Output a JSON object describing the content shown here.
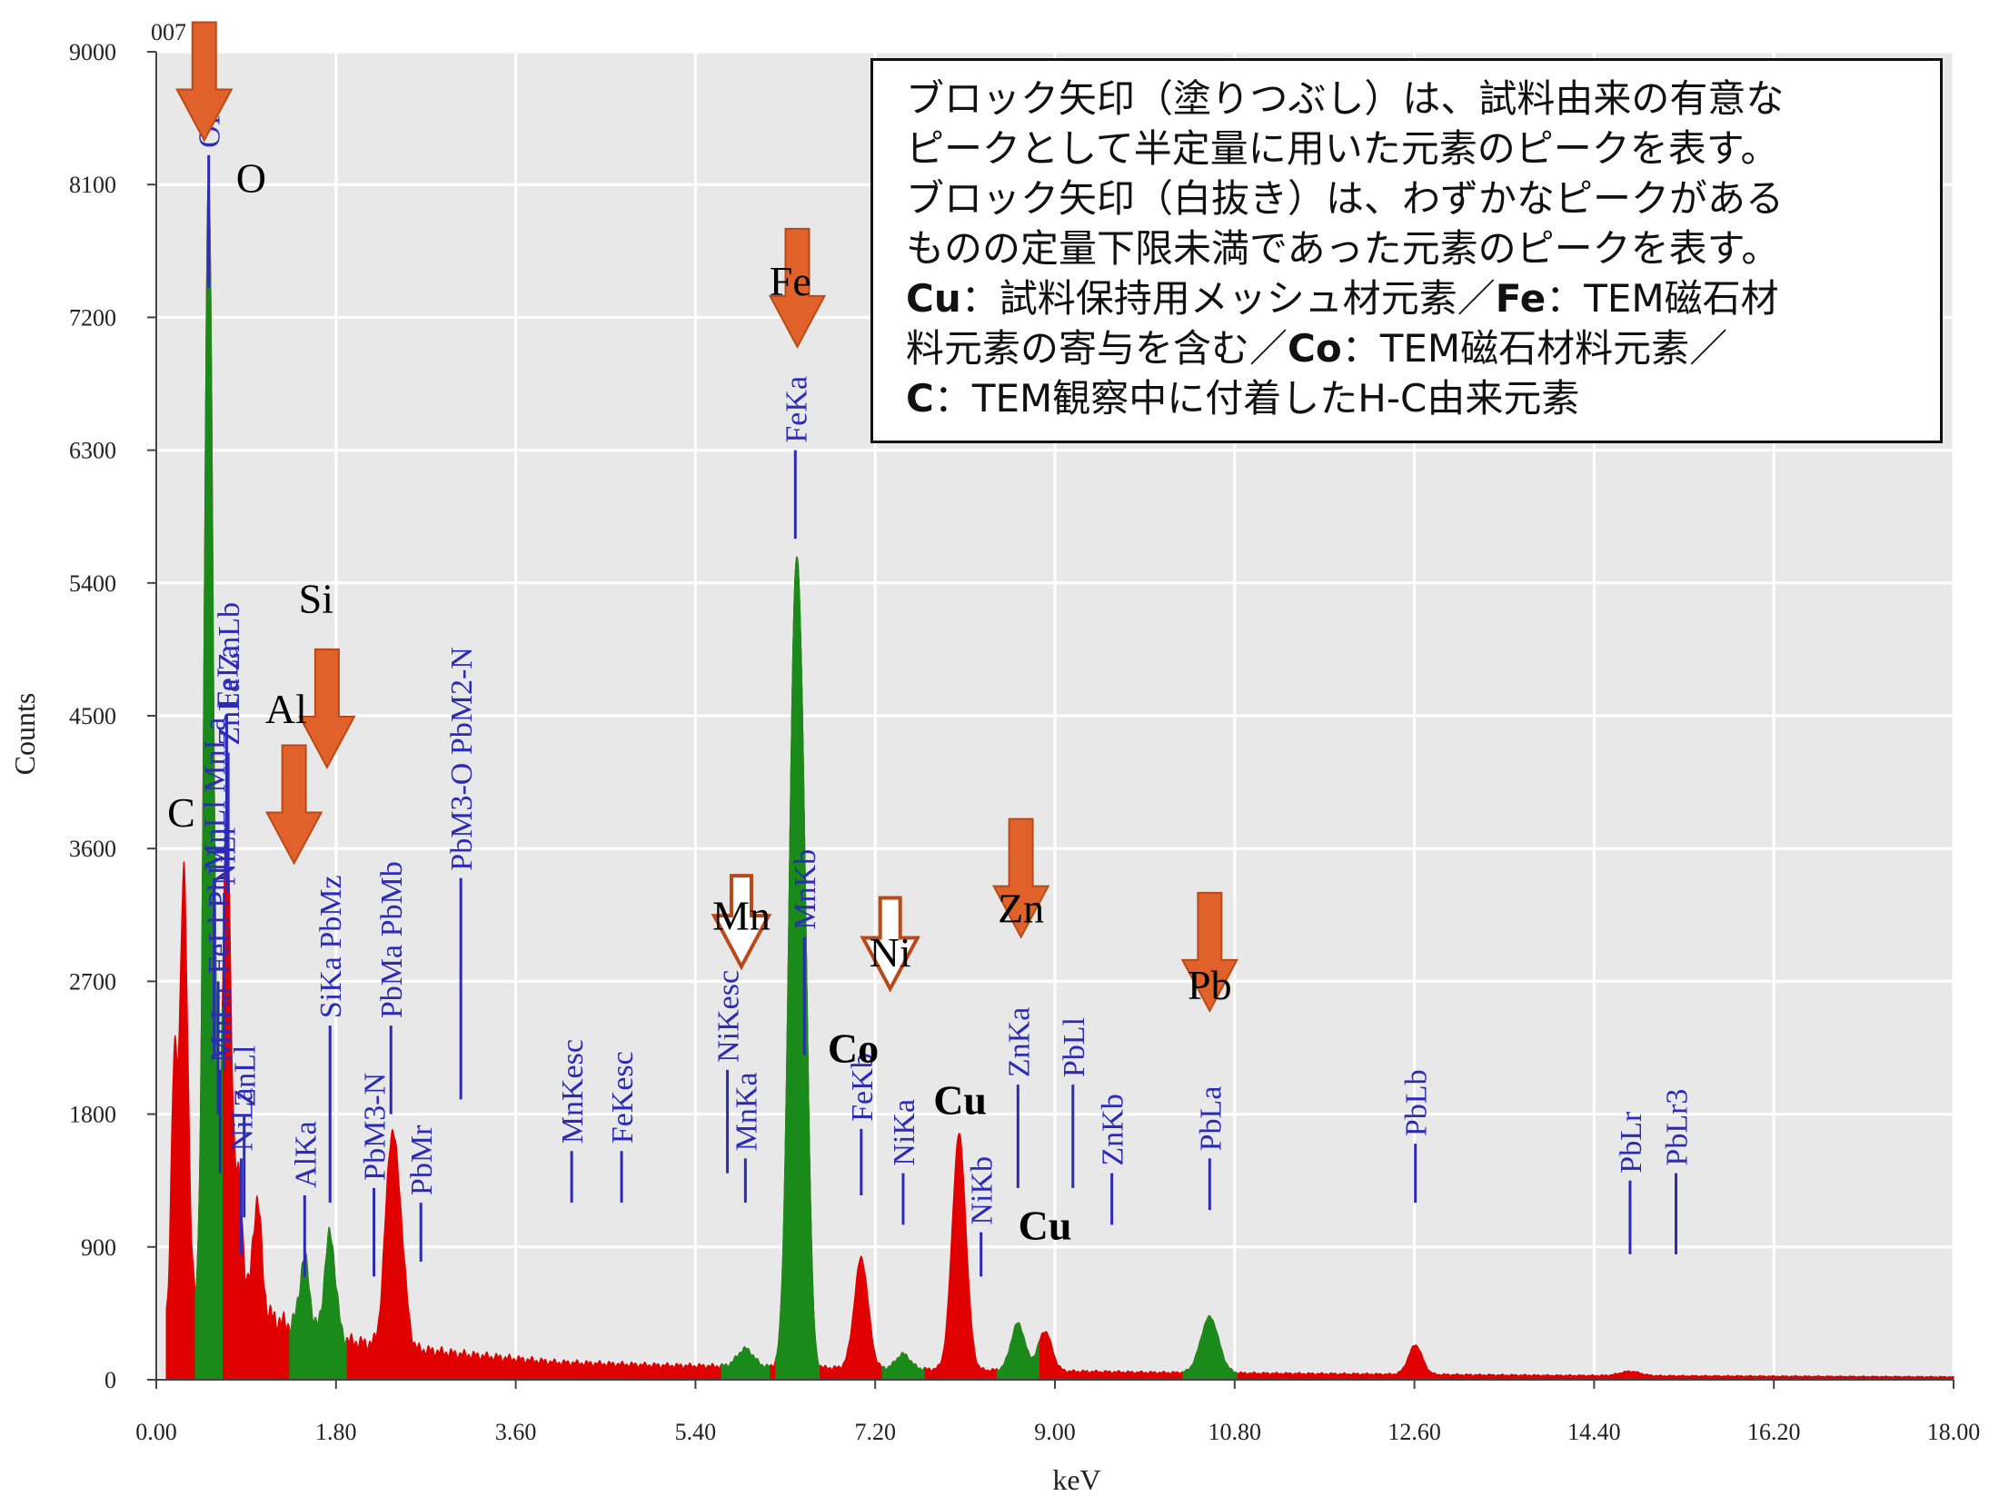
{
  "chart_data": {
    "type": "area",
    "corner_label": "007",
    "xlabel": "keV",
    "ylabel": "Counts",
    "xlim": [
      0,
      18
    ],
    "ylim": [
      0,
      9000
    ],
    "x_ticks": [
      "0.00",
      "1.80",
      "3.60",
      "5.40",
      "7.20",
      "9.00",
      "10.80",
      "12.60",
      "14.40",
      "16.20",
      "18.00"
    ],
    "y_ticks": [
      "0",
      "900",
      "1800",
      "2700",
      "3600",
      "4500",
      "5400",
      "6300",
      "7200",
      "8100",
      "9000"
    ],
    "grid": true,
    "colors": {
      "background": "#e8e8e8",
      "spectrum": "#e00000",
      "highlighted": "#1a8a1a",
      "arrow": "#e0622a",
      "marker": "#2b2bb8"
    },
    "background_baseline": [
      [
        0.1,
        420
      ],
      [
        0.5,
        520
      ],
      [
        1.0,
        480
      ],
      [
        1.5,
        320
      ],
      [
        2.0,
        260
      ],
      [
        2.5,
        220
      ],
      [
        3.0,
        180
      ],
      [
        4.0,
        120
      ],
      [
        5.0,
        100
      ],
      [
        6.0,
        90
      ],
      [
        7.0,
        80
      ],
      [
        8.0,
        70
      ],
      [
        9.0,
        60
      ],
      [
        10.0,
        50
      ],
      [
        12.0,
        40
      ],
      [
        14.0,
        30
      ],
      [
        16.0,
        25
      ],
      [
        18.0,
        20
      ]
    ],
    "peaks": [
      {
        "e": 0.18,
        "h": 1700,
        "w": 0.03,
        "c": "red"
      },
      {
        "e": 0.277,
        "h": 3000,
        "w": 0.04,
        "c": "red"
      },
      {
        "e": 0.525,
        "h": 7700,
        "w": 0.045,
        "c": "green"
      },
      {
        "e": 0.705,
        "h": 3300,
        "w": 0.045,
        "c": "red"
      },
      {
        "e": 0.83,
        "h": 800,
        "w": 0.04,
        "c": "red"
      },
      {
        "e": 1.01,
        "h": 750,
        "w": 0.045,
        "c": "red"
      },
      {
        "e": 1.486,
        "h": 500,
        "w": 0.05,
        "c": "green"
      },
      {
        "e": 1.74,
        "h": 700,
        "w": 0.055,
        "c": "green"
      },
      {
        "e": 2.345,
        "h": 1200,
        "w": 0.06,
        "c": "red"
      },
      {
        "e": 2.44,
        "h": 700,
        "w": 0.06,
        "c": "red"
      },
      {
        "e": 5.9,
        "h": 120,
        "w": 0.08,
        "c": "green"
      },
      {
        "e": 6.4,
        "h": 5050,
        "w": 0.065,
        "c": "green"
      },
      {
        "e": 6.49,
        "h": 1800,
        "w": 0.05,
        "c": "green"
      },
      {
        "e": 7.06,
        "h": 750,
        "w": 0.07,
        "c": "red"
      },
      {
        "e": 7.48,
        "h": 100,
        "w": 0.07,
        "c": "green"
      },
      {
        "e": 8.04,
        "h": 1600,
        "w": 0.07,
        "c": "red"
      },
      {
        "e": 8.63,
        "h": 320,
        "w": 0.07,
        "c": "green"
      },
      {
        "e": 8.9,
        "h": 270,
        "w": 0.07,
        "c": "red"
      },
      {
        "e": 10.55,
        "h": 380,
        "w": 0.09,
        "c": "green"
      },
      {
        "e": 12.61,
        "h": 200,
        "w": 0.07,
        "c": "red"
      },
      {
        "e": 14.76,
        "h": 30,
        "w": 0.1,
        "c": "red"
      }
    ],
    "line_markers": [
      {
        "label": "OKa",
        "e": 0.525,
        "top": 8300,
        "bottom": 7400
      },
      {
        "label": "FeLa",
        "e": 0.705,
        "top": 4500,
        "bottom": 3400
      },
      {
        "label": "ZnLa ZnLb",
        "e": 0.72,
        "top": 4250,
        "bottom": 3300
      },
      {
        "label": "MnLl MnLa",
        "e": 0.58,
        "top": 3400,
        "bottom": 2200
      },
      {
        "label": "NiLl",
        "e": 0.68,
        "top": 3300,
        "bottom": 2100
      },
      {
        "label": "FeLl PbLl",
        "e": 0.62,
        "top": 2700,
        "bottom": 1800
      },
      {
        "label": "MnLa",
        "e": 0.64,
        "top": 2100,
        "bottom": 1400
      },
      {
        "label": "ZnLl",
        "e": 0.88,
        "top": 1800,
        "bottom": 1100
      },
      {
        "label": "NiLa",
        "e": 0.85,
        "top": 1500,
        "bottom": 850
      },
      {
        "label": "AlKa",
        "e": 1.486,
        "top": 1250,
        "bottom": 700
      },
      {
        "label": "SiKa PbMz",
        "e": 1.74,
        "top": 2400,
        "bottom": 1200
      },
      {
        "label": "PbM3-N",
        "e": 2.18,
        "top": 1300,
        "bottom": 700
      },
      {
        "label": "PbMa PbMb",
        "e": 2.35,
        "top": 2400,
        "bottom": 1800
      },
      {
        "label": "PbMr",
        "e": 2.65,
        "top": 1200,
        "bottom": 800
      },
      {
        "label": "PbM3-O PbM2-N",
        "e": 3.05,
        "top": 3400,
        "bottom": 1900
      },
      {
        "label": "MnKesc",
        "e": 4.16,
        "top": 1550,
        "bottom": 1200
      },
      {
        "label": "FeKesc",
        "e": 4.66,
        "top": 1550,
        "bottom": 1200
      },
      {
        "label": "NiKesc",
        "e": 5.72,
        "top": 2100,
        "bottom": 1400
      },
      {
        "label": "MnKa",
        "e": 5.9,
        "top": 1500,
        "bottom": 1200
      },
      {
        "label": "FeKa",
        "e": 6.4,
        "top": 6300,
        "bottom": 5700
      },
      {
        "label": "MnKb",
        "e": 6.49,
        "top": 3000,
        "bottom": 2200
      },
      {
        "label": "FeKb",
        "e": 7.06,
        "top": 1700,
        "bottom": 1250
      },
      {
        "label": "NiKa",
        "e": 7.48,
        "top": 1400,
        "bottom": 1050
      },
      {
        "label": "NiKb",
        "e": 8.26,
        "top": 1000,
        "bottom": 700
      },
      {
        "label": "ZnKa",
        "e": 8.63,
        "top": 2000,
        "bottom": 1300
      },
      {
        "label": "PbLl",
        "e": 9.18,
        "top": 2000,
        "bottom": 1300
      },
      {
        "label": "ZnKb",
        "e": 9.57,
        "top": 1400,
        "bottom": 1050
      },
      {
        "label": "PbLa",
        "e": 10.55,
        "top": 1500,
        "bottom": 1150
      },
      {
        "label": "PbLb",
        "e": 12.61,
        "top": 1600,
        "bottom": 1200
      },
      {
        "label": "PbLr",
        "e": 14.76,
        "top": 1350,
        "bottom": 850
      },
      {
        "label": "PbLr3",
        "e": 15.22,
        "top": 1400,
        "bottom": 850
      }
    ],
    "element_annotations": [
      {
        "label": "O",
        "e": 0.48,
        "v": 8400,
        "arrow": "filled",
        "lx": 0.95,
        "ly": 8050
      },
      {
        "label": "Si",
        "e": 1.71,
        "v": 4150,
        "arrow": "filled",
        "lx": 1.6,
        "ly": 5200
      },
      {
        "label": "Al",
        "e": 1.38,
        "v": 3500,
        "arrow": "filled",
        "lx": 1.3,
        "ly": 4450
      },
      {
        "label": "C",
        "e": 0.25,
        "v": 3700,
        "arrow": "none",
        "lx": 0.25,
        "ly": 3750
      },
      {
        "label": "Fe",
        "e": 6.42,
        "v": 7000,
        "arrow": "filled",
        "lx": 6.35,
        "ly": 7350
      },
      {
        "label": "Mn",
        "e": 5.86,
        "v": 2800,
        "arrow": "open",
        "lx": 5.86,
        "ly": 3050
      },
      {
        "label": "Ni",
        "e": 7.35,
        "v": 2650,
        "arrow": "open",
        "lx": 7.35,
        "ly": 2800
      },
      {
        "label": "Zn",
        "e": 8.66,
        "v": 3000,
        "arrow": "filled",
        "lx": 8.66,
        "ly": 3100
      },
      {
        "label": "Pb",
        "e": 10.55,
        "v": 2500,
        "arrow": "filled",
        "lx": 10.55,
        "ly": 2580
      },
      {
        "label": "Co",
        "e": 6.98,
        "v": 0,
        "arrow": "none",
        "lx": 6.98,
        "ly": 2150
      },
      {
        "label": "Cu",
        "e": 8.05,
        "v": 0,
        "arrow": "none",
        "lx": 8.05,
        "ly": 1800
      },
      {
        "label": "Cu",
        "e": 8.9,
        "v": 0,
        "arrow": "none",
        "lx": 8.9,
        "ly": 950
      }
    ]
  },
  "legend": {
    "line1": "ブロック矢印（塗りつぶし）は、試料由来の有意な",
    "line2": "ピークとして半定量に用いた元素のピークを表す。",
    "line3": "ブロック矢印（白抜き）は、わずかなピークがある",
    "line4": "ものの定量下限未満であった元素のピークを表す。",
    "cu_sym": "Cu",
    "cu_text": "：試料保持用メッシュ材元素／",
    "fe_sym": "Fe",
    "fe_text": "：TEM磁石材",
    "line6": "料元素の寄与を含む／",
    "co_sym": "Co",
    "co_text": "：TEM磁石材料元素／",
    "c_sym": "C",
    "c_text": "：TEM観察中に付着したH-C由来元素"
  }
}
